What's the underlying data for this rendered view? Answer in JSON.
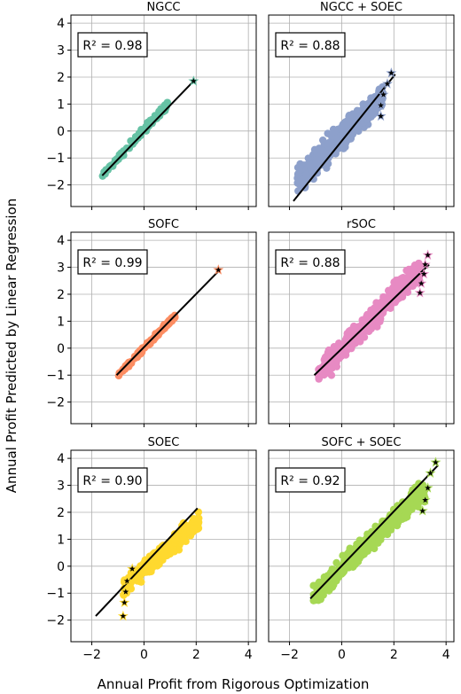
{
  "figure": {
    "xlabel": "Annual Profit from Rigorous Optimization",
    "ylabel": "Annual Profit Predicted by Linear Regression",
    "xticks": [
      -2,
      0,
      2,
      4
    ],
    "yticks": [
      -2,
      -1,
      0,
      1,
      2,
      3,
      4
    ],
    "xlim": [
      -2.8,
      4.3
    ],
    "ylim": [
      -2.8,
      4.3
    ]
  },
  "chart_data": [
    {
      "type": "scatter",
      "title": "NGCC",
      "r2_label": "R² = 0.98",
      "color": "#66c2a5",
      "cloud": {
        "x0": -1.7,
        "x1": 0.9,
        "slope": 1.05,
        "intercept": 0.05,
        "spread": 0.08,
        "n": 90
      },
      "fit": [
        [
          -1.6,
          -1.65
        ],
        [
          1.9,
          1.85
        ]
      ],
      "stars": [
        [
          1.9,
          1.85
        ]
      ]
    },
    {
      "type": "scatter",
      "title": "NGCC + SOEC",
      "r2_label": "R² = 0.88",
      "color": "#8da0cb",
      "cloud": {
        "x0": -1.7,
        "x1": 1.6,
        "slope": 0.95,
        "intercept": -0.2,
        "spread": 0.32,
        "n": 420
      },
      "fit": [
        [
          -1.85,
          -2.6
        ],
        [
          2.05,
          2.1
        ]
      ],
      "stars": [
        [
          1.9,
          2.15
        ],
        [
          1.75,
          1.75
        ],
        [
          1.6,
          1.35
        ],
        [
          1.5,
          0.95
        ],
        [
          1.5,
          0.55
        ]
      ]
    },
    {
      "type": "scatter",
      "title": "SOFC",
      "r2_label": "R² = 0.99",
      "color": "#fc8d62",
      "cloud": {
        "x0": -1.0,
        "x1": 1.2,
        "slope": 1.0,
        "intercept": 0.0,
        "spread": 0.06,
        "n": 120
      },
      "fit": [
        [
          -1.05,
          -1.0
        ],
        [
          2.95,
          2.95
        ]
      ],
      "stars": [
        [
          2.85,
          2.9
        ]
      ]
    },
    {
      "type": "scatter",
      "title": "rSOC",
      "r2_label": "R² = 0.88",
      "color": "#e78ac3",
      "cloud": {
        "x0": -0.9,
        "x1": 3.0,
        "slope": 0.98,
        "intercept": -0.05,
        "spread": 0.28,
        "n": 520
      },
      "fit": [
        [
          -1.05,
          -1.0
        ],
        [
          3.35,
          3.1
        ]
      ],
      "stars": [
        [
          3.3,
          3.45
        ],
        [
          3.2,
          3.1
        ],
        [
          3.15,
          2.75
        ],
        [
          3.05,
          2.4
        ],
        [
          3.0,
          2.05
        ]
      ]
    },
    {
      "type": "scatter",
      "title": "SOEC",
      "r2_label": "R² = 0.90",
      "color": "#ffd92f",
      "cloud": {
        "x0": -0.8,
        "x1": 2.1,
        "slope": 0.85,
        "intercept": -0.1,
        "spread": 0.22,
        "n": 380
      },
      "fit": [
        [
          -1.85,
          -1.85
        ],
        [
          2.05,
          2.15
        ]
      ],
      "stars": [
        [
          -0.8,
          -1.85
        ],
        [
          -0.75,
          -1.35
        ],
        [
          -0.7,
          -0.95
        ],
        [
          -0.65,
          -0.55
        ],
        [
          -0.45,
          -0.1
        ]
      ]
    },
    {
      "type": "scatter",
      "title": "SOFC + SOEC",
      "r2_label": "R² = 0.92",
      "color": "#a6d854",
      "cloud": {
        "x0": -1.1,
        "x1": 3.2,
        "slope": 0.92,
        "intercept": -0.1,
        "spread": 0.25,
        "n": 480
      },
      "fit": [
        [
          -1.2,
          -1.2
        ],
        [
          3.7,
          3.75
        ]
      ],
      "stars": [
        [
          3.6,
          3.85
        ],
        [
          3.4,
          3.45
        ],
        [
          3.3,
          2.9
        ],
        [
          3.2,
          2.45
        ],
        [
          3.1,
          2.05
        ]
      ]
    }
  ]
}
